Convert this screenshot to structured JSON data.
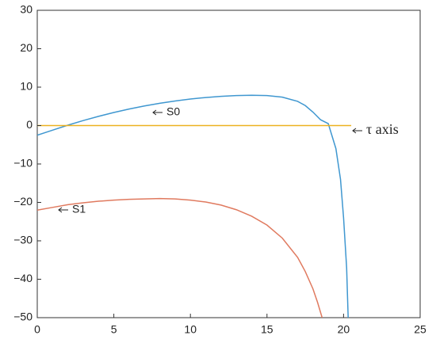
{
  "chart_data": {
    "type": "line",
    "xlim": [
      0,
      25
    ],
    "xticks": [
      0,
      5,
      10,
      15,
      20,
      25
    ],
    "ylim": [
      -50,
      30
    ],
    "yticks": [
      {
        "value": -50,
        "label": "−50"
      },
      {
        "value": -40,
        "label": "−40"
      },
      {
        "value": -30,
        "label": "−30"
      },
      {
        "value": -20,
        "label": "−20"
      },
      {
        "value": -10,
        "label": "−10"
      },
      0,
      10,
      20,
      30
    ],
    "series": [
      {
        "name": "S0",
        "color": "#3f97d0",
        "x": [
          0,
          1,
          2,
          3,
          4,
          5,
          6,
          7,
          8,
          9,
          10,
          11,
          12,
          13,
          14,
          15,
          16,
          17,
          17.5,
          18,
          18.5,
          19,
          19.5,
          19.8,
          20,
          20.2,
          20.3
        ],
        "values": [
          -2.5,
          -1.2,
          0.1,
          1.3,
          2.4,
          3.4,
          4.3,
          5.1,
          5.8,
          6.4,
          6.9,
          7.3,
          7.6,
          7.8,
          7.9,
          7.8,
          7.4,
          6.3,
          5.2,
          3.5,
          1.5,
          0.5,
          -6,
          -14,
          -24,
          -37,
          -50
        ]
      },
      {
        "name": "S1",
        "color": "#e07a5f",
        "x": [
          0,
          1,
          2,
          3,
          4,
          5,
          6,
          7,
          8,
          9,
          10,
          11,
          12,
          13,
          14,
          15,
          16,
          17,
          17.5,
          18,
          18.3,
          18.6
        ],
        "values": [
          -22,
          -21.3,
          -20.6,
          -20.1,
          -19.7,
          -19.4,
          -19.2,
          -19.1,
          -19,
          -19.1,
          -19.4,
          -19.9,
          -20.7,
          -21.9,
          -23.6,
          -25.9,
          -29.3,
          -34.3,
          -38,
          -42.5,
          -46,
          -50
        ]
      },
      {
        "name": "τ axis",
        "color": "#edb120",
        "x": [
          0,
          20.5
        ],
        "values": [
          0,
          0
        ]
      }
    ]
  }
}
